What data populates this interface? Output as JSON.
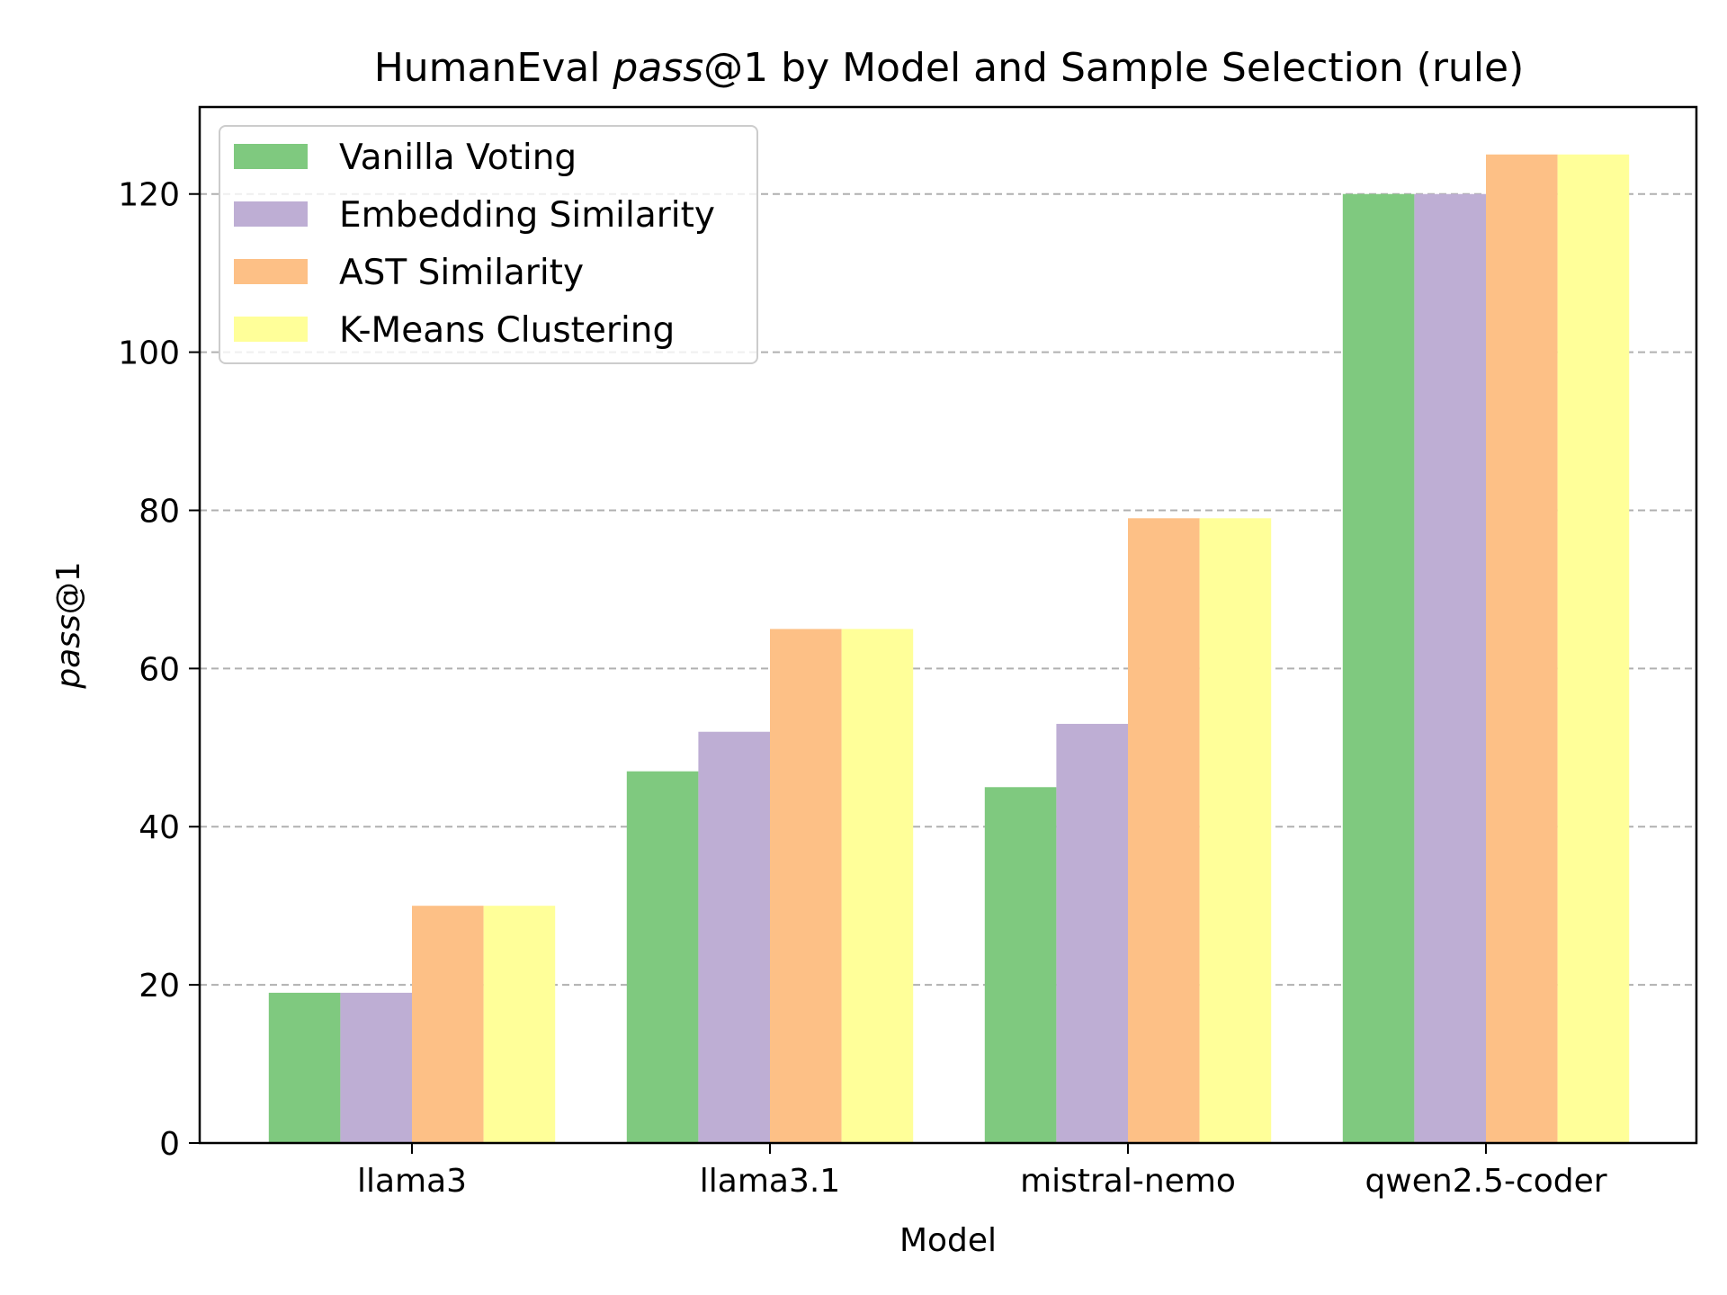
{
  "chart_data": {
    "type": "bar",
    "title_prefix": "HumanEval ",
    "title_italic": "pass",
    "title_suffix": "@1 by Model and Sample Selection (rule)",
    "xlabel": "Model",
    "ylabel_italic": "pass",
    "ylabel_suffix": "@1",
    "categories": [
      "llama3",
      "llama3.1",
      "mistral-nemo",
      "qwen2.5-coder"
    ],
    "ylim": [
      0,
      131
    ],
    "yticks": [
      0,
      20,
      40,
      60,
      80,
      100,
      120
    ],
    "grid": "y-dashed",
    "legend_position": "top-left",
    "series": [
      {
        "name": "Vanilla Voting",
        "color": "#7fc97f",
        "values": [
          19,
          47,
          45,
          120
        ]
      },
      {
        "name": "Embedding Similarity",
        "color": "#beaed4",
        "values": [
          19,
          52,
          53,
          120
        ]
      },
      {
        "name": "AST Similarity",
        "color": "#fdc086",
        "values": [
          30,
          65,
          79,
          125
        ]
      },
      {
        "name": "K-Means Clustering",
        "color": "#ffff99",
        "values": [
          30,
          65,
          79,
          125
        ]
      }
    ]
  }
}
